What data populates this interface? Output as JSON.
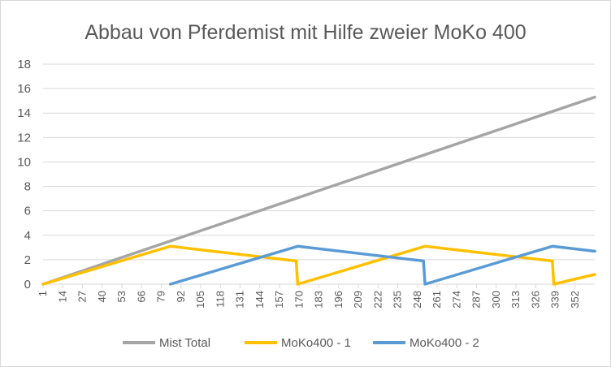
{
  "chart_data": {
    "type": "line",
    "title": "Abbau von Pferdemist mit Hilfe zweier MoKo 400",
    "xlabel": "",
    "ylabel": "",
    "ylim": [
      0,
      18
    ],
    "yticks": [
      0,
      2,
      4,
      6,
      8,
      10,
      12,
      14,
      16,
      18
    ],
    "x_range": [
      1,
      365
    ],
    "xticks": [
      1,
      14,
      27,
      40,
      53,
      66,
      79,
      92,
      105,
      118,
      131,
      144,
      157,
      170,
      183,
      196,
      209,
      222,
      235,
      248,
      261,
      274,
      287,
      300,
      313,
      326,
      339,
      352
    ],
    "grid": true,
    "legend_position": "bottom",
    "series": [
      {
        "name": "Mist Total",
        "color": "#a5a5a5",
        "points": [
          [
            1,
            0
          ],
          [
            365,
            15.3
          ]
        ]
      },
      {
        "name": "MoKo400 - 1",
        "color": "#ffc000",
        "points": [
          [
            1,
            0
          ],
          [
            85,
            3.1
          ],
          [
            168,
            1.9
          ],
          [
            169,
            0
          ],
          [
            253,
            3.1
          ],
          [
            337,
            1.9
          ],
          [
            338,
            0
          ],
          [
            365,
            0.8
          ]
        ]
      },
      {
        "name": "MoKo400 - 2",
        "color": "#5b9bd5",
        "points": [
          [
            85,
            0
          ],
          [
            169,
            3.1
          ],
          [
            252,
            1.9
          ],
          [
            253,
            0
          ],
          [
            337,
            3.1
          ],
          [
            365,
            2.7
          ]
        ]
      }
    ]
  }
}
